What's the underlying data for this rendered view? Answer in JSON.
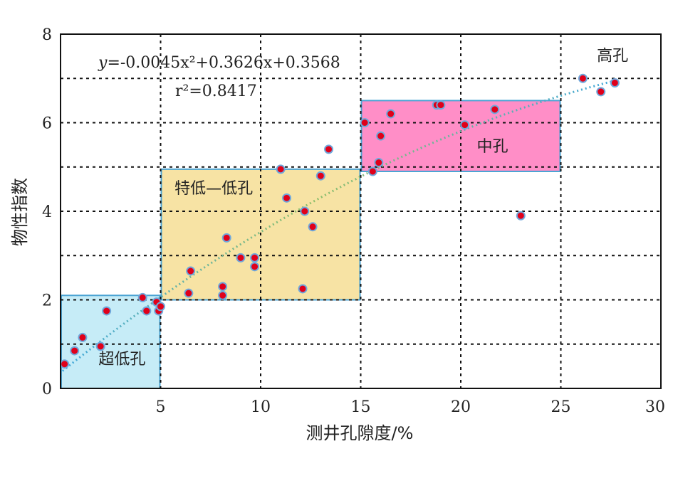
{
  "chart_data": {
    "type": "scatter",
    "xlabel": "测井孔隙度/%",
    "ylabel": "物性指数",
    "xlim": [
      0,
      30
    ],
    "ylim": [
      0,
      8
    ],
    "xticks": [
      "5",
      "10",
      "15",
      "20",
      "25",
      "30"
    ],
    "yticks": [
      "0",
      "2",
      "4",
      "6",
      "8"
    ],
    "grid": true,
    "equation": {
      "text_y": "y",
      "text_body": "=-0.0045x²+0.3626x+0.3568",
      "r2": "r²=0.8417"
    },
    "fit": {
      "a": -0.0045,
      "b": 0.3626,
      "c": 0.3568,
      "x_range": [
        0.1,
        27.8
      ]
    },
    "regions": [
      {
        "label": "超低孔",
        "x": [
          0,
          5
        ],
        "y": [
          0,
          2.1
        ],
        "fill": "#c6ecf7",
        "stroke": "#4aa3d3"
      },
      {
        "label": "特低—低孔",
        "x": [
          5,
          15
        ],
        "y": [
          2,
          4.95
        ],
        "fill": "#f7e3a4",
        "stroke": "#4aa3d3"
      },
      {
        "label": "中孔",
        "x": [
          15,
          25
        ],
        "y": [
          4.9,
          6.5
        ],
        "fill": "#ff8ec7",
        "stroke": "#4aa3d3"
      },
      {
        "label": "高孔",
        "x": [
          25,
          30
        ],
        "y": [
          6.5,
          8
        ],
        "fill": "none",
        "stroke": "none"
      }
    ],
    "points": [
      [
        0.2,
        0.55
      ],
      [
        0.7,
        0.85
      ],
      [
        1.1,
        1.15
      ],
      [
        2.0,
        0.95
      ],
      [
        2.3,
        1.75
      ],
      [
        4.1,
        2.05
      ],
      [
        4.3,
        1.75
      ],
      [
        4.8,
        1.95
      ],
      [
        4.9,
        1.75
      ],
      [
        5.0,
        1.85
      ],
      [
        6.4,
        2.15
      ],
      [
        6.5,
        2.65
      ],
      [
        8.1,
        2.1
      ],
      [
        8.1,
        2.3
      ],
      [
        8.3,
        3.4
      ],
      [
        9.0,
        2.95
      ],
      [
        9.7,
        2.95
      ],
      [
        9.7,
        2.75
      ],
      [
        11.0,
        4.95
      ],
      [
        11.3,
        4.3
      ],
      [
        12.1,
        2.25
      ],
      [
        12.2,
        4.0
      ],
      [
        12.6,
        3.65
      ],
      [
        13.0,
        4.8
      ],
      [
        13.4,
        5.4
      ],
      [
        15.2,
        6.0
      ],
      [
        15.6,
        4.9
      ],
      [
        15.9,
        5.1
      ],
      [
        16.0,
        5.7
      ],
      [
        16.5,
        6.2
      ],
      [
        18.8,
        6.4
      ],
      [
        19.0,
        6.4
      ],
      [
        20.2,
        5.95
      ],
      [
        21.7,
        6.3
      ],
      [
        23.0,
        3.9
      ],
      [
        26.1,
        7.0
      ],
      [
        27.0,
        6.7
      ],
      [
        27.7,
        6.9
      ]
    ],
    "colors": {
      "point_fill": "#e0001a",
      "point_stroke": "#6fa8dc",
      "trend": "#3fa7dc",
      "trend_mid": "#8fbf6a"
    }
  }
}
